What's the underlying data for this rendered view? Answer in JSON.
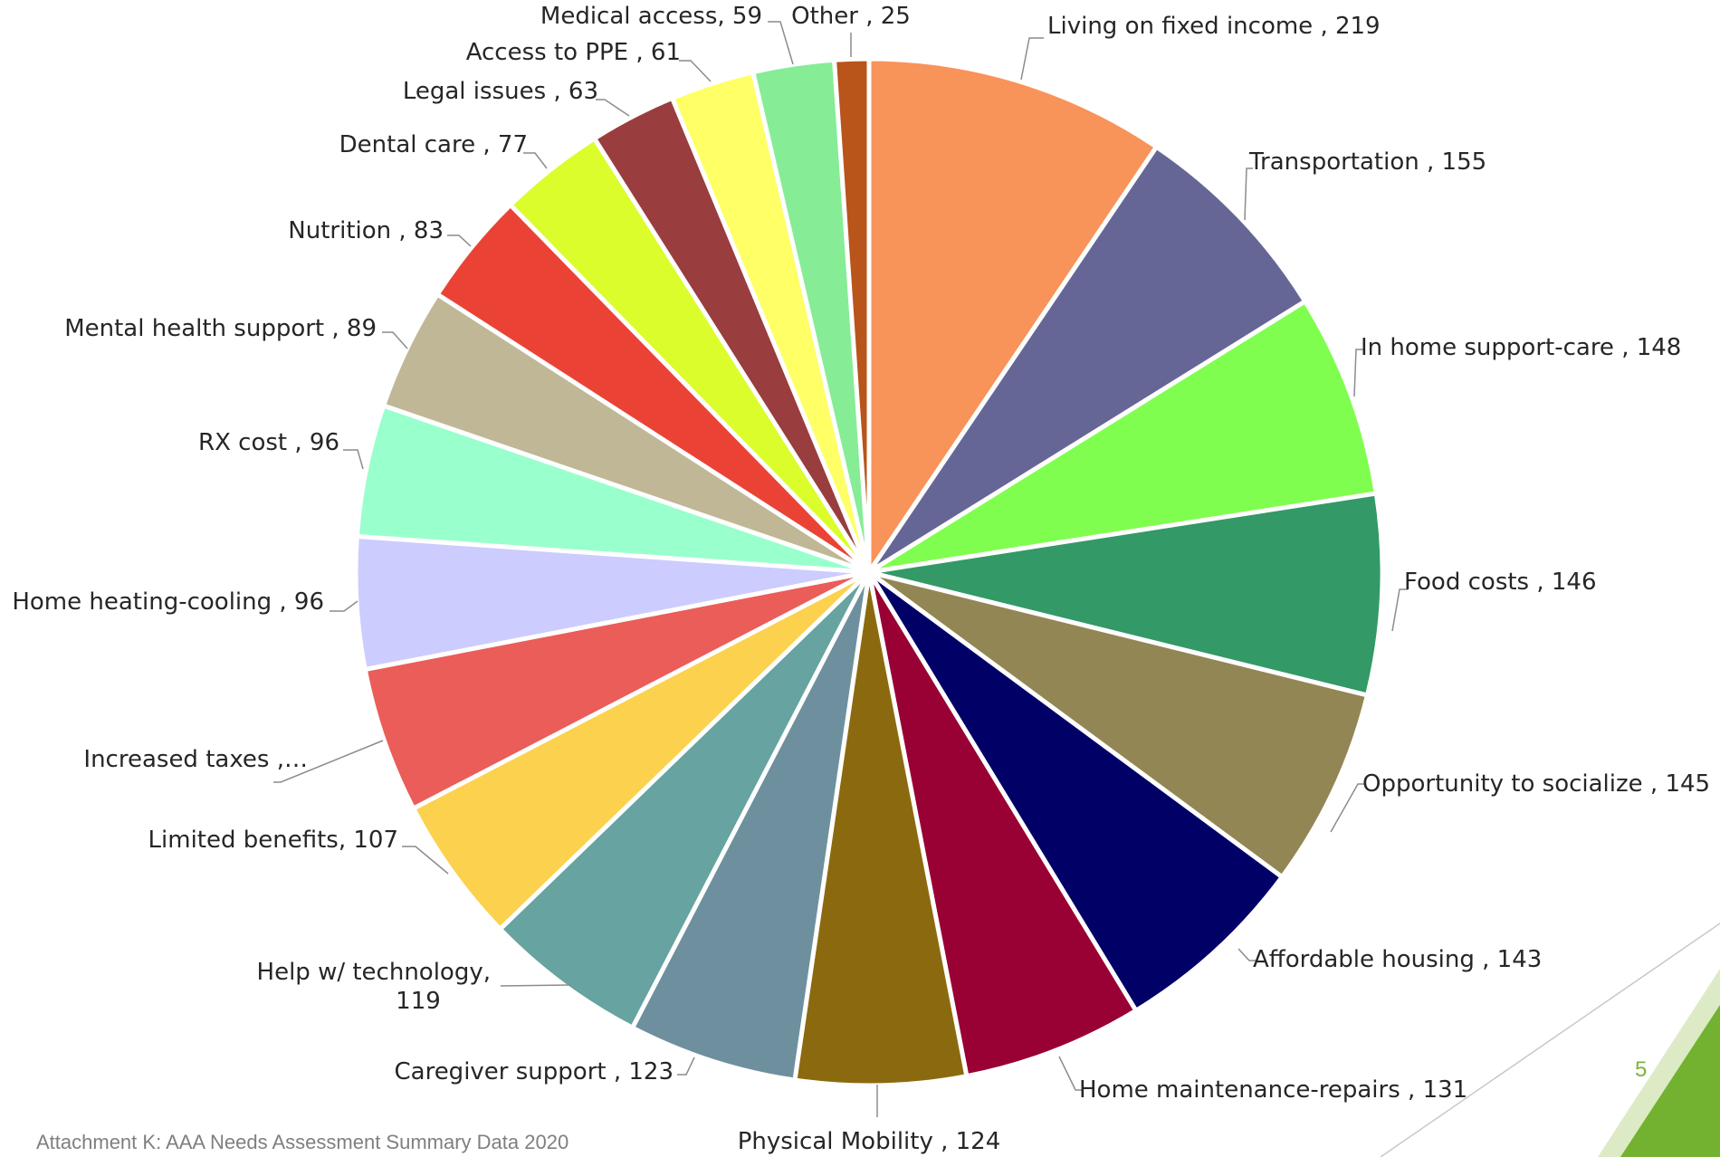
{
  "page": {
    "footer": "Attachment K: AAA Needs Assessment Summary Data 2020",
    "slide_number": "5",
    "accent_color": "#73b231"
  },
  "chart_data": {
    "type": "pie",
    "title": "",
    "slices": [
      {
        "label": "Living on fixed income",
        "value": 219,
        "display": "Living on fixed income , 219",
        "color": "#f8935a"
      },
      {
        "label": "Transportation",
        "value": 155,
        "display": "Transportation , 155",
        "color": "#666696"
      },
      {
        "label": "In home support-care",
        "value": 148,
        "display": "In home support-care , 148",
        "color": "#7ffe4f"
      },
      {
        "label": "Food costs",
        "value": 146,
        "display": "Food costs , 146",
        "color": "#339966"
      },
      {
        "label": "Opportunity to socialize",
        "value": 145,
        "display": "Opportunity to socialize , 145",
        "color": "#928655"
      },
      {
        "label": "Affordable housing",
        "value": 143,
        "display": "Affordable housing , 143",
        "color": "#000066"
      },
      {
        "label": "Home maintenance-repairs",
        "value": 131,
        "display": "Home maintenance-repairs , 131",
        "color": "#990033"
      },
      {
        "label": "Physical Mobility",
        "value": 124,
        "display": "Physical Mobility , 124",
        "color": "#8b6a0f"
      },
      {
        "label": "Caregiver support",
        "value": 123,
        "display": "Caregiver support , 123",
        "color": "#6e909e"
      },
      {
        "label": "Help w/ technology",
        "value": 119,
        "display": [
          "Help w/ technology,",
          "119"
        ],
        "color": "#66a3a1"
      },
      {
        "label": "Limited benefits",
        "value": 107,
        "display": "Limited benefits, 107",
        "color": "#fcd14d"
      },
      {
        "label": "Increased taxes",
        "value": 106,
        "display": "Increased taxes ,…",
        "color": "#ea5d59"
      },
      {
        "label": "Home heating-cooling",
        "value": 96,
        "display": "Home heating-cooling , 96",
        "color": "#ccccff"
      },
      {
        "label": "RX cost",
        "value": 96,
        "display": "RX cost , 96",
        "color": "#99ffcc"
      },
      {
        "label": "Mental health support",
        "value": 89,
        "display": "Mental health support , 89",
        "color": "#c0b796"
      },
      {
        "label": "Nutrition",
        "value": 83,
        "display": "Nutrition , 83",
        "color": "#ea4335"
      },
      {
        "label": "Dental care",
        "value": 77,
        "display": "Dental care , 77",
        "color": "#dbfd2b"
      },
      {
        "label": "Legal issues",
        "value": 63,
        "display": "Legal issues , 63",
        "color": "#993d3e"
      },
      {
        "label": "Access to PPE",
        "value": 61,
        "display": "Access to PPE , 61",
        "color": "#ffff66"
      },
      {
        "label": "Medical access",
        "value": 59,
        "display": "Medical access, 59",
        "color": "#86ec96"
      },
      {
        "label": "Other",
        "value": 25,
        "display": "Other , 25",
        "color": "#b9541a"
      }
    ]
  }
}
